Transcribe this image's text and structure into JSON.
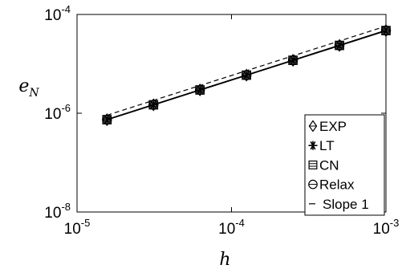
{
  "chart_data": {
    "type": "line",
    "xscale": "log",
    "yscale": "log",
    "xlim": [
      1e-05,
      0.001
    ],
    "ylim": [
      1e-08,
      0.0001
    ],
    "xticks": [
      {
        "base": "10",
        "exp": "-5",
        "value": 1e-05
      },
      {
        "base": "10",
        "exp": "-4",
        "value": 0.0001
      },
      {
        "base": "10",
        "exp": "-3",
        "value": 0.001
      }
    ],
    "yticks": [
      {
        "base": "10",
        "exp": "-8",
        "value": 1e-08
      },
      {
        "base": "10",
        "exp": "-6",
        "value": 1e-06
      },
      {
        "base": "10",
        "exp": "-4",
        "value": 0.0001
      }
    ],
    "xlabel": {
      "main": "h",
      "sub": ""
    },
    "ylabel": {
      "main": "e",
      "sub": "N"
    },
    "legend_position": "lower-right",
    "x": [
      1.5625e-05,
      3.125e-05,
      6.25e-05,
      0.000125,
      0.00025,
      0.0005,
      0.001
    ],
    "series": [
      {
        "name": "EXP",
        "marker": "diamond",
        "style": "solid",
        "values": [
          7.4e-07,
          1.48e-06,
          2.96e-06,
          5.9e-06,
          1.18e-05,
          2.36e-05,
          4.72e-05
        ]
      },
      {
        "name": "LT",
        "marker": "asterisk",
        "style": "solid",
        "values": [
          7.4e-07,
          1.48e-06,
          2.96e-06,
          5.9e-06,
          1.18e-05,
          2.36e-05,
          4.72e-05
        ]
      },
      {
        "name": "CN",
        "marker": "boxed-square",
        "style": "solid",
        "values": [
          7.4e-07,
          1.48e-06,
          2.96e-06,
          5.9e-06,
          1.18e-05,
          2.36e-05,
          4.72e-05
        ]
      },
      {
        "name": "Relax",
        "marker": "circle-bar",
        "style": "solid",
        "values": [
          7.4e-07,
          1.48e-06,
          2.96e-06,
          5.9e-06,
          1.18e-05,
          2.36e-05,
          4.72e-05
        ]
      },
      {
        "name": "Slope 1",
        "marker": "none",
        "style": "dashed",
        "x": [
          1.5625e-05,
          0.001
        ],
        "values": [
          9.1e-07,
          5.8e-05
        ]
      }
    ],
    "colors": {
      "line": "#000000",
      "background": "#ffffff"
    },
    "grid": false
  }
}
